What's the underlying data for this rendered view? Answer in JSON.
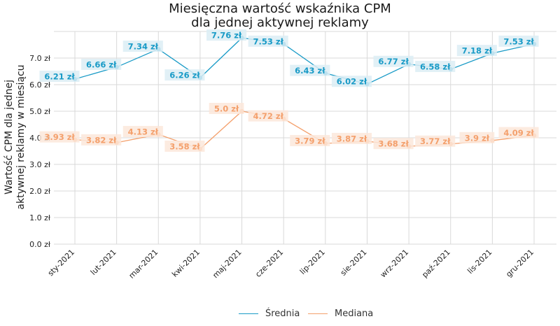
{
  "chart_data": {
    "type": "line",
    "title": "Miesięczna wartość wskaźnika CPM\ndla jednej aktywnej reklamy",
    "title_lines": [
      "Miesięczna wartość wskaźnika CPM",
      "dla jednej aktywnej reklamy"
    ],
    "xlabel": "",
    "ylabel_lines": [
      "Wartość CPM dla jednej",
      "aktywnej reklamy w miesiącu"
    ],
    "categories": [
      "sty-2021",
      "lut-2021",
      "mar-2021",
      "kwi-2021",
      "maj-2021",
      "cze-2021",
      "lip-2021",
      "sie-2021",
      "wrz-2021",
      "paź-2021",
      "lis-2021",
      "gru-2021"
    ],
    "ylim": [
      0,
      8
    ],
    "yticks": [
      0,
      1,
      2,
      3,
      4,
      5,
      6,
      7
    ],
    "ytick_labels": [
      "0.0 zł",
      "1.0 zł",
      "2.0 zł",
      "3.0 zł",
      "4.0 zł",
      "5.0 zł",
      "6.0 zł",
      "7.0 zł"
    ],
    "grid": true,
    "legend_position": "bottom-center",
    "series": [
      {
        "name": "Średnia",
        "color": "#1a9bc7",
        "values": [
          6.21,
          6.66,
          7.34,
          6.26,
          7.76,
          7.53,
          6.43,
          6.02,
          6.77,
          6.58,
          7.18,
          7.53
        ],
        "labels": [
          "6.21 zł",
          "6.66 zł",
          "7.34 zł",
          "6.26 zł",
          "7.76 zł",
          "7.53 zł",
          "6.43 zł",
          "6.02 zł",
          "6.77 zł",
          "6.58 zł",
          "7.18 zł",
          "7.53 zł"
        ]
      },
      {
        "name": "Mediana",
        "color": "#f4a06c",
        "values": [
          3.93,
          3.82,
          4.13,
          3.58,
          5.0,
          4.72,
          3.79,
          3.87,
          3.68,
          3.77,
          3.9,
          4.09
        ],
        "labels": [
          "3.93 zł",
          "3.82 zł",
          "4.13 zł",
          "3.58 zł",
          "5.0 zł",
          "4.72 zł",
          "3.79 zł",
          "3.87 zł",
          "3.68 zł",
          "3.77 zł",
          "3.9 zł",
          "4.09 zł"
        ]
      }
    ]
  }
}
